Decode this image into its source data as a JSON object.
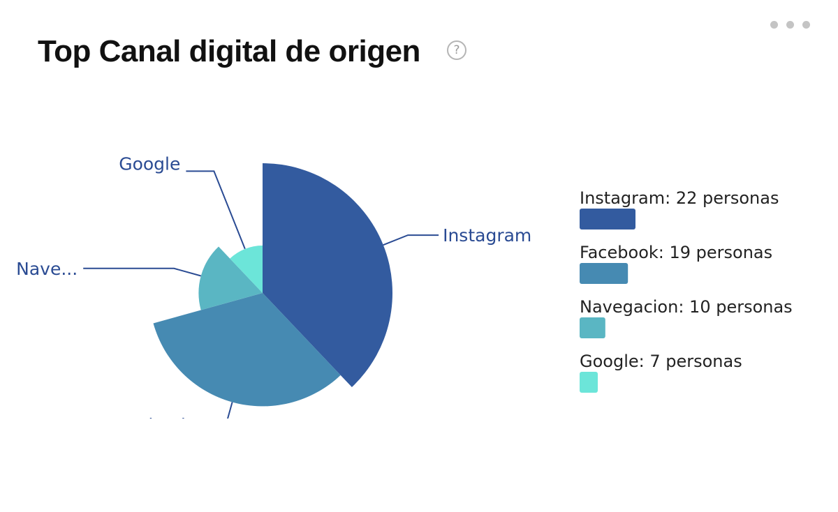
{
  "header": {
    "title": "Top Canal digital de origen",
    "help_glyph": "?",
    "more_icon": "more-horizontal-icon"
  },
  "chart_data": {
    "type": "pie",
    "variant": "nightingale-rose",
    "series": [
      {
        "name": "Instagram",
        "value": 22,
        "label": "Instagram",
        "legend": "Instagram: 22 personas",
        "color": "#335b9f"
      },
      {
        "name": "Facebook",
        "value": 19,
        "label": "Facebook",
        "legend": "Facebook: 19 personas",
        "color": "#468ab2"
      },
      {
        "name": "Navegacion",
        "value": 10,
        "label": "Nave...",
        "legend": "Navegacion: 10 personas",
        "color": "#5ab6c3"
      },
      {
        "name": "Google",
        "value": 7,
        "label": "Google",
        "legend": "Google: 7 personas",
        "color": "#6ce5d9"
      }
    ],
    "unit": "personas",
    "legend_position": "right",
    "label_color": "#2a4b93"
  }
}
